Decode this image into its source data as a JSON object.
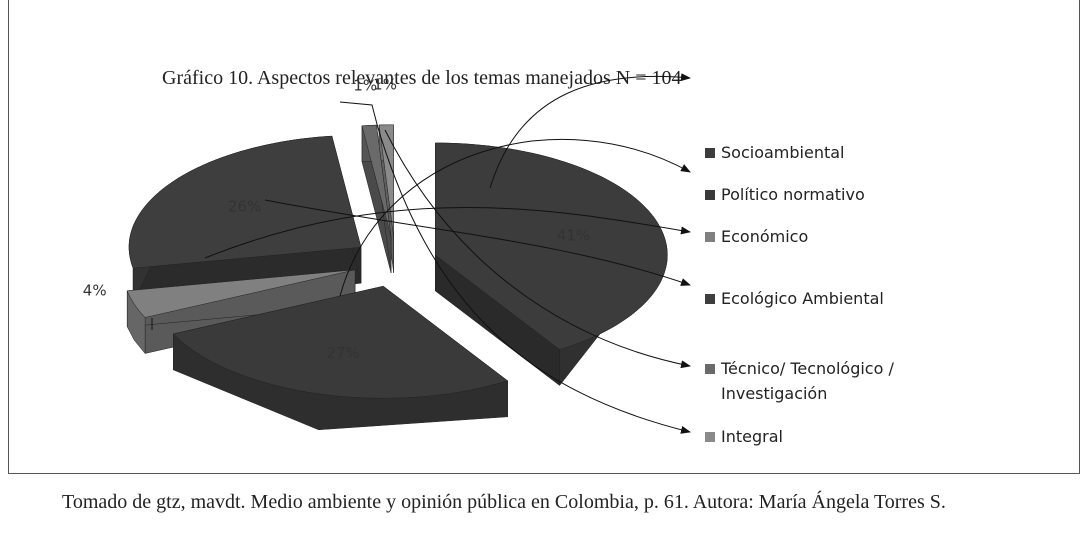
{
  "chart_data": {
    "type": "pie",
    "title": "Gráfico 10. Aspectos relevantes de los temas manejados N = 104",
    "series": [
      {
        "name": "Socioambiental",
        "color": "#3c3c3c",
        "values": [
          41
        ],
        "value_labels": [
          "41%"
        ]
      },
      {
        "name": "Político  normativo",
        "color": "#3a3a3a",
        "values": [
          27
        ],
        "value_labels": [
          "27%"
        ]
      },
      {
        "name": "Económico",
        "color": "#808080",
        "values": [
          4
        ],
        "value_labels": [
          "4%"
        ]
      },
      {
        "name": "Ecológico Ambiental",
        "color": "#3e3e3e",
        "values": [
          26
        ],
        "value_labels": [
          "26%"
        ]
      },
      {
        "name": "Técnico/ Tecnológico / Investigación",
        "color": "#6a6a6a",
        "values": [
          1
        ],
        "value_labels": [
          "1%"
        ]
      },
      {
        "name": "Integral",
        "color": "#8a8a8a",
        "values": [
          1
        ],
        "value_labels": [
          "1%"
        ]
      }
    ],
    "legend": "right"
  },
  "caption": "Tomado de gtz, mavdt. Medio ambiente y opinión pública en Colombia, p. 61. Autora: María Ángela Torres S."
}
